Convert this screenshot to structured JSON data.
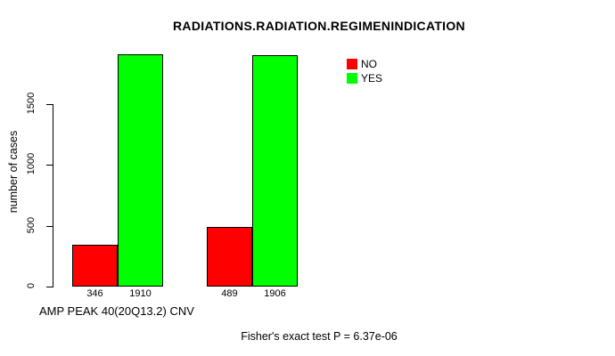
{
  "chart_data": {
    "type": "bar",
    "title": "RADIATIONS.RADIATION.REGIMENINDICATION",
    "ylabel": "number of cases",
    "xlabel": "AMP PEAK 40(20Q13.2) CNV",
    "annotation": "Fisher's exact test P = 6.37e-06",
    "series": [
      {
        "name": "NO",
        "color": "#ff0000",
        "values": [
          346,
          489
        ]
      },
      {
        "name": "YES",
        "color": "#00ff00",
        "values": [
          1910,
          1906
        ]
      }
    ],
    "bar_labels": [
      "346",
      "1910",
      "489",
      "1906"
    ],
    "yticks": [
      0,
      500,
      1000,
      1500
    ],
    "ylim": [
      0,
      1920
    ],
    "grid": false,
    "legend_position": "top-right",
    "axis_color": "#000000",
    "background_color": "#ffffff"
  }
}
